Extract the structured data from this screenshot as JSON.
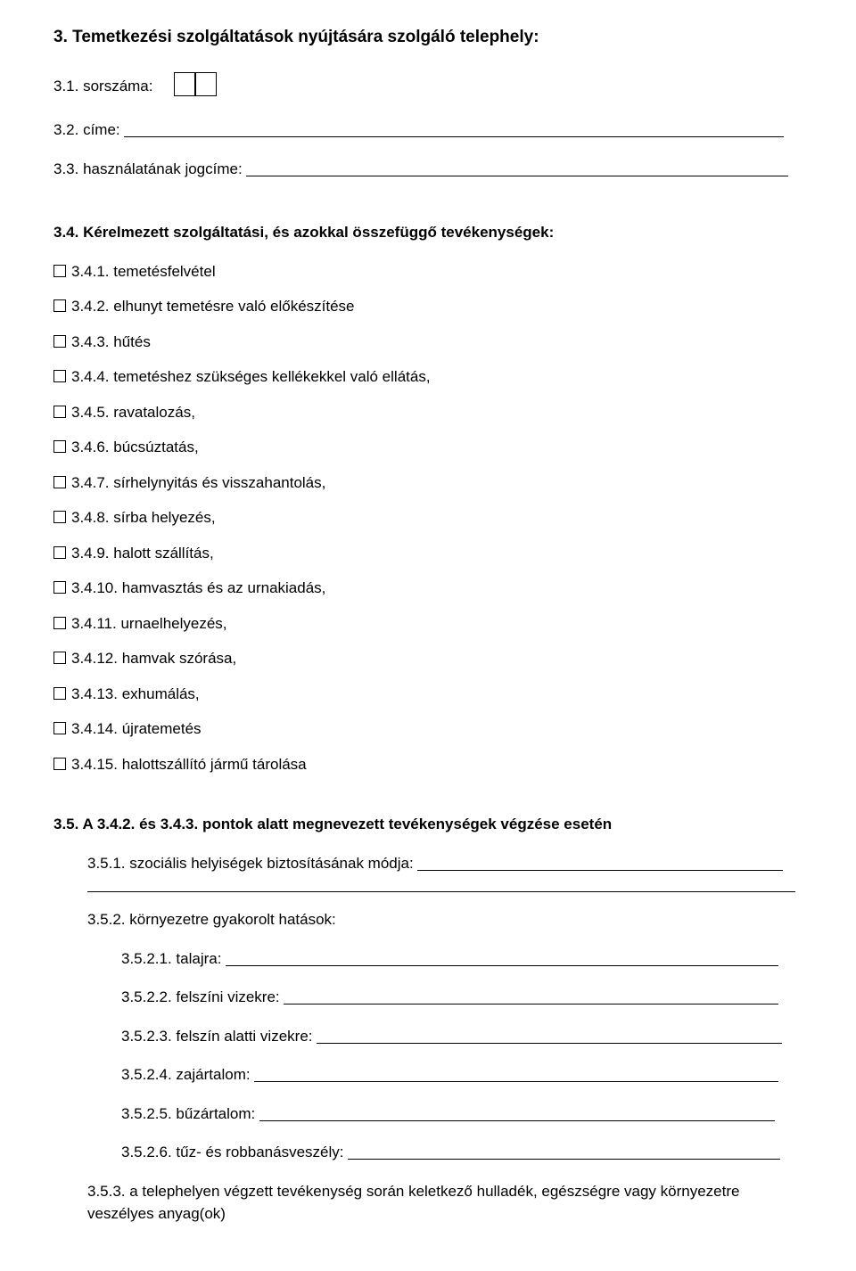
{
  "section3": {
    "heading": "3. Temetkezési szolgáltatások nyújtására szolgáló telephely:",
    "items": {
      "i31_label": "3.1. sorszáma:",
      "i32_label": "3.2. címe:",
      "i33_label": "3.3. használatának jogcíme:"
    }
  },
  "section34": {
    "heading": "3.4. Kérelmezett szolgáltatási, és azokkal összefüggő tevékenységek:",
    "options": [
      "3.4.1. temetésfelvétel",
      "3.4.2. elhunyt temetésre való előkészítése",
      "3.4.3. hűtés",
      "3.4.4. temetéshez szükséges kellékekkel való ellátás,",
      "3.4.5. ravatalozás,",
      "3.4.6. búcsúztatás,",
      "3.4.7. sírhelynyitás és visszahantolás,",
      "3.4.8. sírba helyezés,",
      "3.4.9. halott szállítás,",
      "3.4.10. hamvasztás és az urnakiadás,",
      "3.4.11. urnaelhelyezés,",
      "3.4.12. hamvak szórása,",
      "3.4.13. exhumálás,",
      "3.4.14. újratemetés",
      "3.4.15. halottszállító jármű tárolása"
    ]
  },
  "section35": {
    "heading": "3.5. A 3.4.2. és 3.4.3. pontok alatt megnevezett tevékenységek végzése esetén",
    "i351_label": "3.5.1. szociális helyiségek biztosításának módja:",
    "i352_label": "3.5.2. környezetre gyakorolt hatások:",
    "sub": {
      "i3521": "3.5.2.1. talajra:",
      "i3522": "3.5.2.2. felszíni vizekre:",
      "i3523": "3.5.2.3. felszín alatti vizekre:",
      "i3524": "3.5.2.4. zajártalom:",
      "i3525": "3.5.2.5. bűzártalom:",
      "i3526": "3.5.2.6. tűz- és robbanásveszély:"
    },
    "i353": "3.5.3. a telephelyen végzett tevékenység során keletkező hulladék, egészségre vagy környezetre veszélyes anyag(ok)"
  }
}
